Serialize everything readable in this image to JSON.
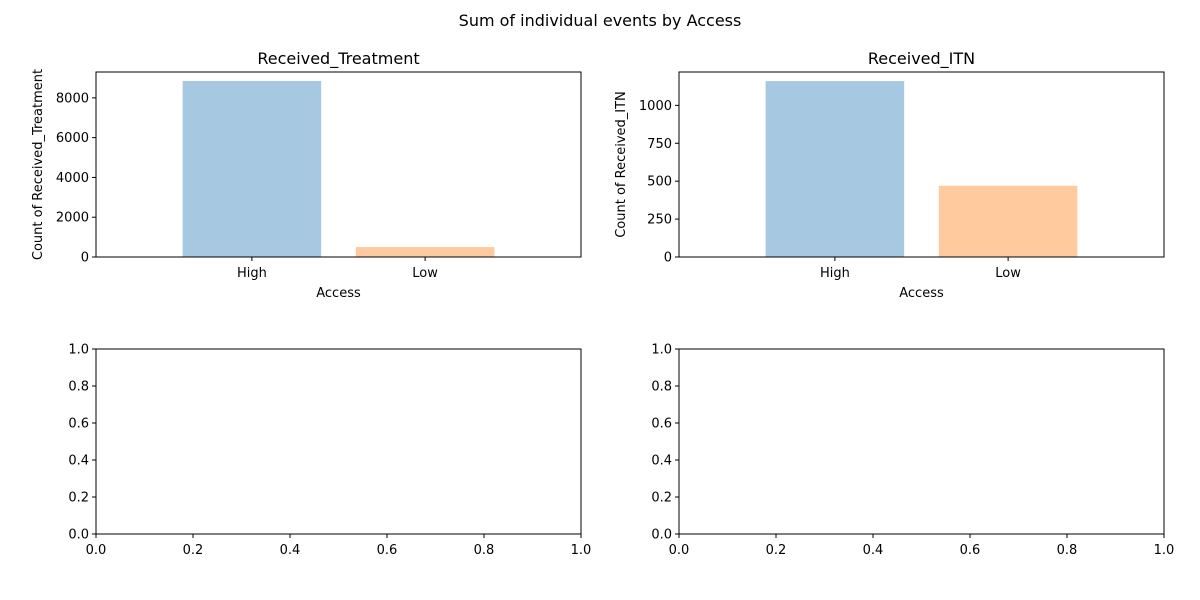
{
  "figure": {
    "suptitle": "Sum of individual events by Access"
  },
  "chart_data": [
    {
      "type": "bar",
      "title": "Received_Treatment",
      "xlabel": "Access",
      "ylabel": "Count of Received_Treatment",
      "categories": [
        "High",
        "Low"
      ],
      "values": [
        8850,
        500
      ],
      "colors": [
        "#a6c8e0",
        "#ffcb9e"
      ],
      "ylim": [
        0,
        9300
      ],
      "yticks": [
        0,
        2000,
        4000,
        6000,
        8000
      ],
      "ytick_labels": [
        "0",
        "2000",
        "4000",
        "6000",
        "8000"
      ]
    },
    {
      "type": "bar",
      "title": "Received_ITN",
      "xlabel": "Access",
      "ylabel": "Count of Received_ITN",
      "categories": [
        "High",
        "Low"
      ],
      "values": [
        1160,
        470
      ],
      "colors": [
        "#a6c8e0",
        "#ffcb9e"
      ],
      "ylim": [
        0,
        1220
      ],
      "yticks": [
        0,
        250,
        500,
        750,
        1000
      ],
      "ytick_labels": [
        "0",
        "250",
        "500",
        "750",
        "1000"
      ]
    },
    {
      "type": "empty",
      "xlim": [
        0,
        1
      ],
      "ylim": [
        0,
        1
      ],
      "xtick_labels": [
        "0.0",
        "0.2",
        "0.4",
        "0.6",
        "0.8",
        "1.0"
      ],
      "ytick_labels": [
        "0.0",
        "0.2",
        "0.4",
        "0.6",
        "0.8",
        "1.0"
      ]
    },
    {
      "type": "empty",
      "xlim": [
        0,
        1
      ],
      "ylim": [
        0,
        1
      ],
      "xtick_labels": [
        "0.0",
        "0.2",
        "0.4",
        "0.6",
        "0.8",
        "1.0"
      ],
      "ytick_labels": [
        "0.0",
        "0.2",
        "0.4",
        "0.6",
        "0.8",
        "1.0"
      ]
    }
  ]
}
